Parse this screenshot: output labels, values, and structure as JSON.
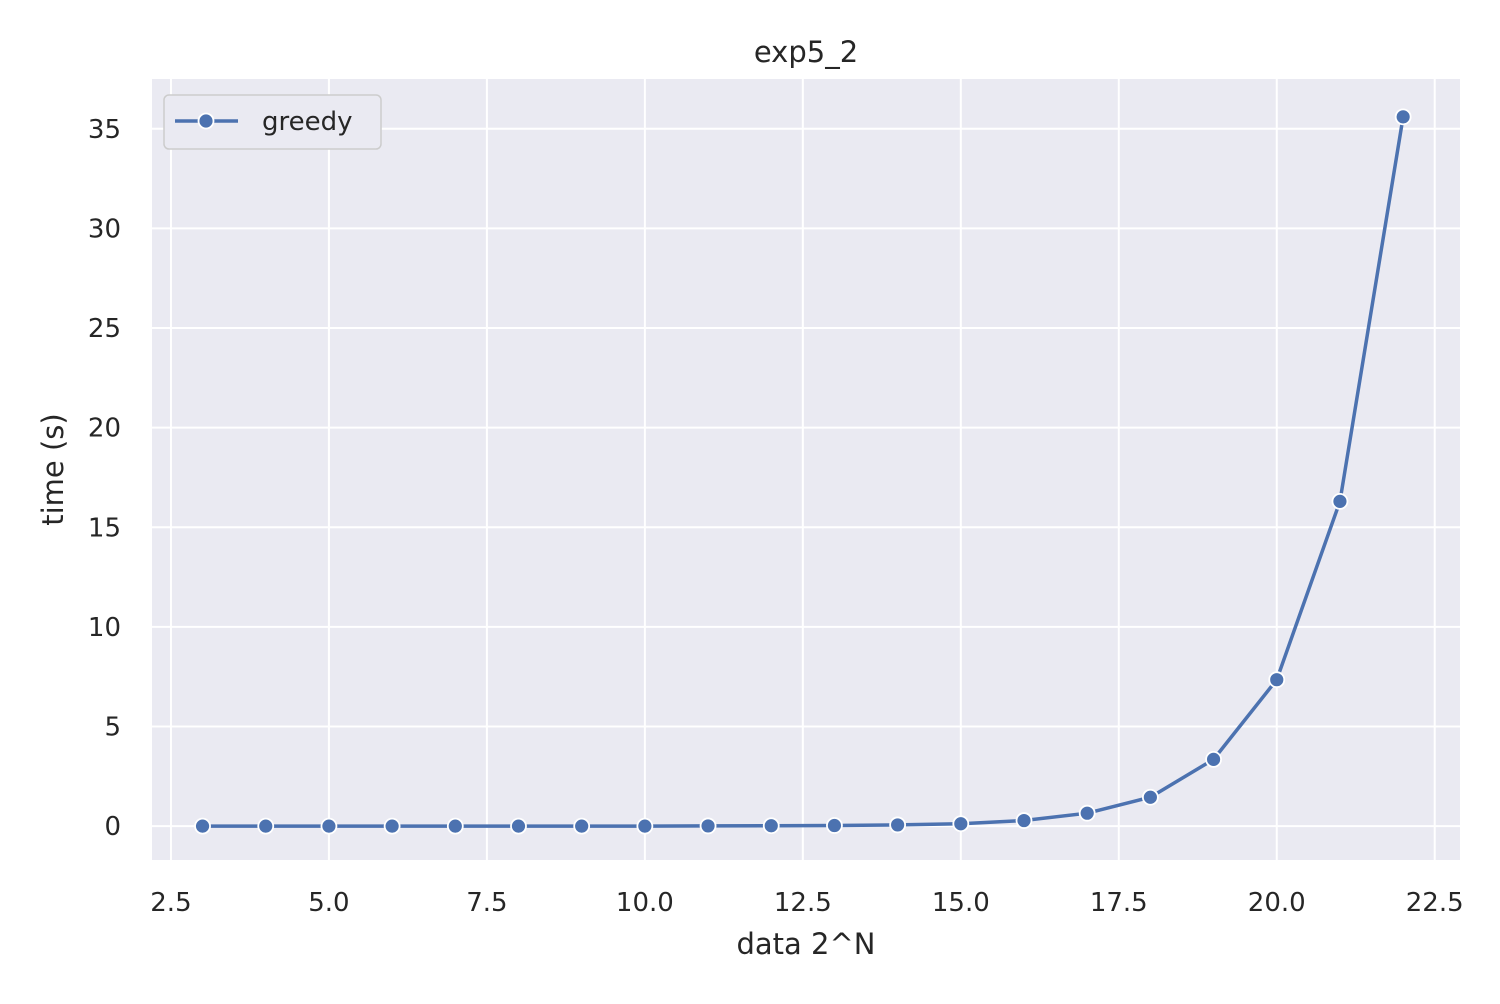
{
  "chart_data": {
    "type": "line",
    "title": "exp5_2",
    "xlabel": "data 2^N",
    "ylabel": "time (s)",
    "xlim": [
      2.2,
      22.9
    ],
    "ylim": [
      -1.7,
      37.5
    ],
    "xticks": [
      2.5,
      5.0,
      7.5,
      10.0,
      12.5,
      15.0,
      17.5,
      20.0,
      22.5
    ],
    "xtick_labels": [
      "2.5",
      "5.0",
      "7.5",
      "10.0",
      "12.5",
      "15.0",
      "17.5",
      "20.0",
      "22.5"
    ],
    "yticks": [
      0,
      5,
      10,
      15,
      20,
      25,
      30,
      35
    ],
    "ytick_labels": [
      "0",
      "5",
      "10",
      "15",
      "20",
      "25",
      "30",
      "35"
    ],
    "grid": true,
    "legend_position": "top-left",
    "colors": {
      "background": "#eaeaf2",
      "grid": "#ffffff",
      "series": "#4c72b0"
    },
    "series": [
      {
        "name": "greedy",
        "marker": "circle",
        "x": [
          3,
          4,
          5,
          6,
          7,
          8,
          9,
          10,
          11,
          12,
          13,
          14,
          15,
          16,
          17,
          18,
          19,
          20,
          21,
          22
        ],
        "y": [
          0.0,
          0.0,
          0.0,
          0.0,
          0.0,
          0.0,
          0.0,
          0.0,
          0.01,
          0.02,
          0.03,
          0.06,
          0.12,
          0.28,
          0.65,
          1.45,
          3.35,
          7.35,
          16.3,
          35.6
        ]
      }
    ]
  }
}
